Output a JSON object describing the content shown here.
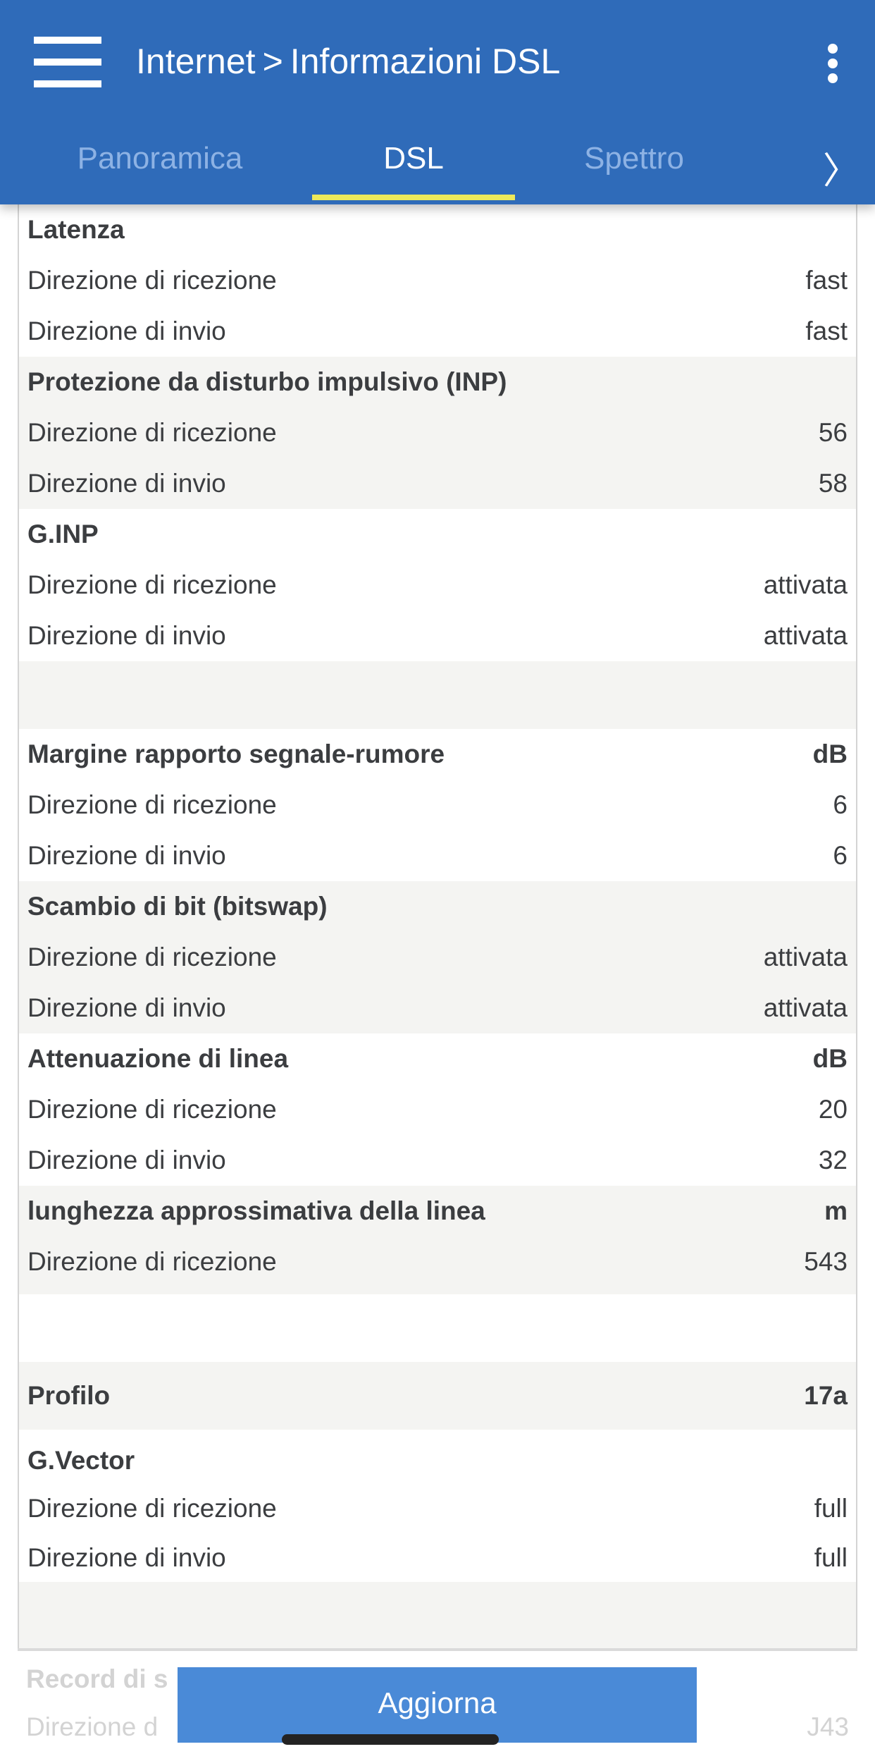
{
  "header": {
    "breadcrumb_parent": "Internet",
    "breadcrumb_separator": ">",
    "title": "Informazioni DSL"
  },
  "tabs": [
    {
      "label": "Panoramica",
      "active": false
    },
    {
      "label": "DSL",
      "active": true
    },
    {
      "label": "Spettro",
      "active": false
    }
  ],
  "colors": {
    "header": "#2f6bb9",
    "tab_indicator": "#ede95a",
    "button": "#4a8ad7"
  },
  "sections": {
    "latenza": {
      "title": "Latenza",
      "unit": "",
      "rx": "fast",
      "tx": "fast"
    },
    "inp": {
      "title": "Protezione da disturbo impulsivo (INP)",
      "unit": "",
      "rx": "56",
      "tx": "58"
    },
    "ginp": {
      "title": "G.INP",
      "unit": "",
      "rx": "attivata",
      "tx": "attivata"
    },
    "snr": {
      "title": "Margine rapporto segnale-rumore",
      "unit": "dB",
      "rx": "6",
      "tx": "6"
    },
    "bitswap": {
      "title": "Scambio di bit (bitswap)",
      "unit": "",
      "rx": "attivata",
      "tx": "attivata"
    },
    "attenuation": {
      "title": "Attenuazione di linea",
      "unit": "dB",
      "rx": "20",
      "tx": "32"
    },
    "length": {
      "title": "lunghezza approssimativa della linea",
      "unit": "m",
      "rx": "543"
    },
    "profile": {
      "title": "Profilo",
      "value": "17a"
    },
    "gvector": {
      "title": "G.Vector",
      "unit": "",
      "rx": "full",
      "tx": "full"
    },
    "record": {
      "title_partial": "Record di s",
      "rx_label_partial": "Direzione d",
      "rx": "J43"
    }
  },
  "labels": {
    "rx": "Direzione di ricezione",
    "tx": "Direzione di invio"
  },
  "button": {
    "refresh": "Aggiorna"
  }
}
